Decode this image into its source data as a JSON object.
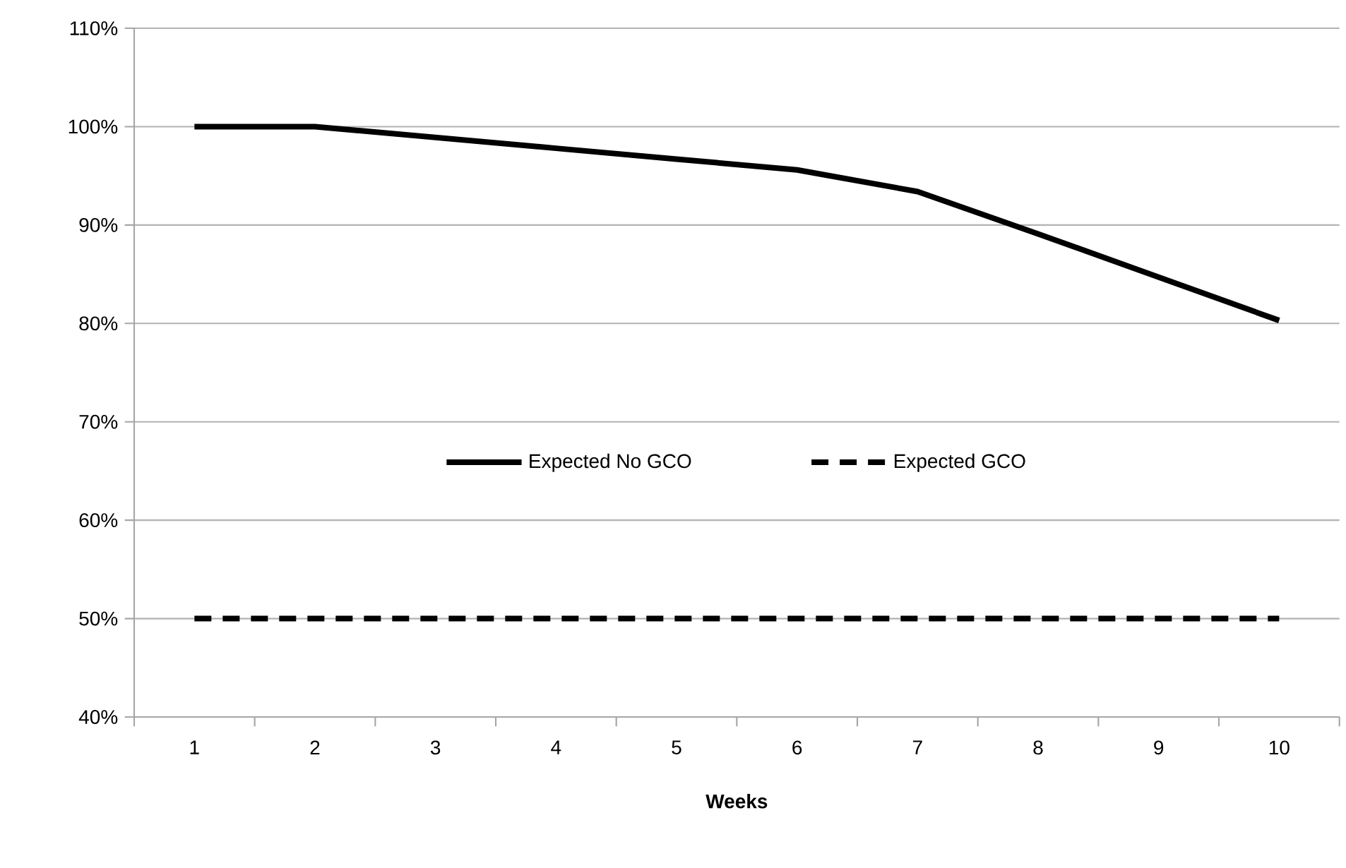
{
  "chart_data": {
    "type": "line",
    "xlabel": "Weeks",
    "categories": [
      "1",
      "2",
      "3",
      "4",
      "5",
      "6",
      "7",
      "8",
      "9",
      "10"
    ],
    "series": [
      {
        "name": "Expected No GCO",
        "color": "#000000",
        "line_style": "solid",
        "values": [
          100,
          100,
          98.9,
          97.8,
          96.7,
          95.6,
          93.4,
          89.1,
          84.7,
          80.3
        ]
      },
      {
        "name": "Expected GCO",
        "color": "#000000",
        "line_style": "dashed",
        "values": [
          50,
          50,
          50,
          50,
          50,
          50,
          50,
          50,
          50,
          50
        ]
      }
    ],
    "ylim": [
      40,
      110
    ],
    "yticks": [
      {
        "value": 40,
        "label": "40%"
      },
      {
        "value": 50,
        "label": "50%"
      },
      {
        "value": 60,
        "label": "60%"
      },
      {
        "value": 70,
        "label": "70%"
      },
      {
        "value": 80,
        "label": "80%"
      },
      {
        "value": 90,
        "label": "90%"
      },
      {
        "value": 100,
        "label": "100%"
      },
      {
        "value": 110,
        "label": "110%"
      }
    ],
    "grid": "y",
    "legend": "center",
    "marker": "none"
  }
}
